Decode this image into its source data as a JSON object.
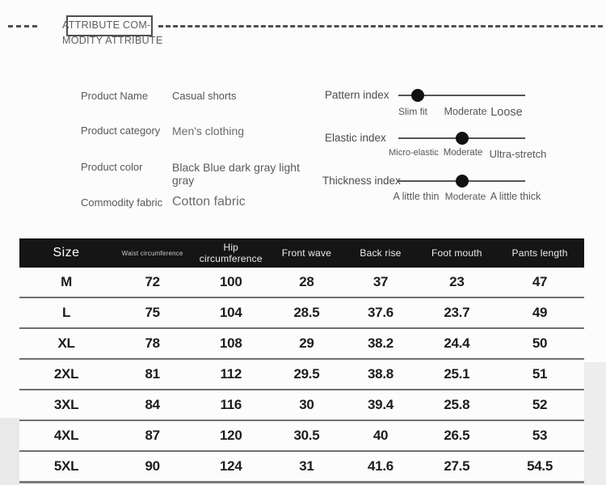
{
  "header": {
    "title_line1": "ATTRIBUTE COM-",
    "title_line2": "MODITY ATTRIBUTE"
  },
  "attributes": [
    {
      "label": "Product Name",
      "value": "Casual shorts"
    },
    {
      "label": "Product category",
      "value": "Men's clothing"
    },
    {
      "label": "Product color",
      "value": "Black Blue dark gray light gray"
    },
    {
      "label": "Commodity fabric",
      "value": "Cotton fabric"
    }
  ],
  "sliders": [
    {
      "label": "Pattern index",
      "ticks": [
        "Slim fit",
        "Moderate",
        "Loose"
      ],
      "knob_percent": 15
    },
    {
      "label": "Elastic index",
      "ticks": [
        "Micro-elastic",
        "Moderate",
        "Ultra-stretch"
      ],
      "knob_percent": 50
    },
    {
      "label": "Thickness index",
      "ticks": [
        "A little thin",
        "Moderate",
        "A little thick"
      ],
      "knob_percent": 50
    }
  ],
  "size_table": {
    "columns": [
      "Size",
      "Waist circumference",
      "Hip circumference",
      "Front wave",
      "Back rise",
      "Foot mouth",
      "Pants length"
    ],
    "rows": [
      [
        "M",
        "72",
        "100",
        "28",
        "37",
        "23",
        "47"
      ],
      [
        "L",
        "75",
        "104",
        "28.5",
        "37.6",
        "23.7",
        "49"
      ],
      [
        "XL",
        "78",
        "108",
        "29",
        "38.2",
        "24.4",
        "50"
      ],
      [
        "2XL",
        "81",
        "112",
        "29.5",
        "38.8",
        "25.1",
        "51"
      ],
      [
        "3XL",
        "84",
        "116",
        "30",
        "39.4",
        "25.8",
        "52"
      ],
      [
        "4XL",
        "87",
        "120",
        "30.5",
        "40",
        "26.5",
        "53"
      ],
      [
        "5XL",
        "90",
        "124",
        "31",
        "41.6",
        "27.5",
        "54.5"
      ]
    ]
  },
  "colors": {
    "table_header_bg": "#151515",
    "table_header_text": "#ececec",
    "row_separator": "#6f6f6f",
    "number_text": "#1d1d1d",
    "label_text": "#585858",
    "slider_track": "#555555",
    "slider_knob": "#111111",
    "dashed_line": "#4f4f4f"
  }
}
